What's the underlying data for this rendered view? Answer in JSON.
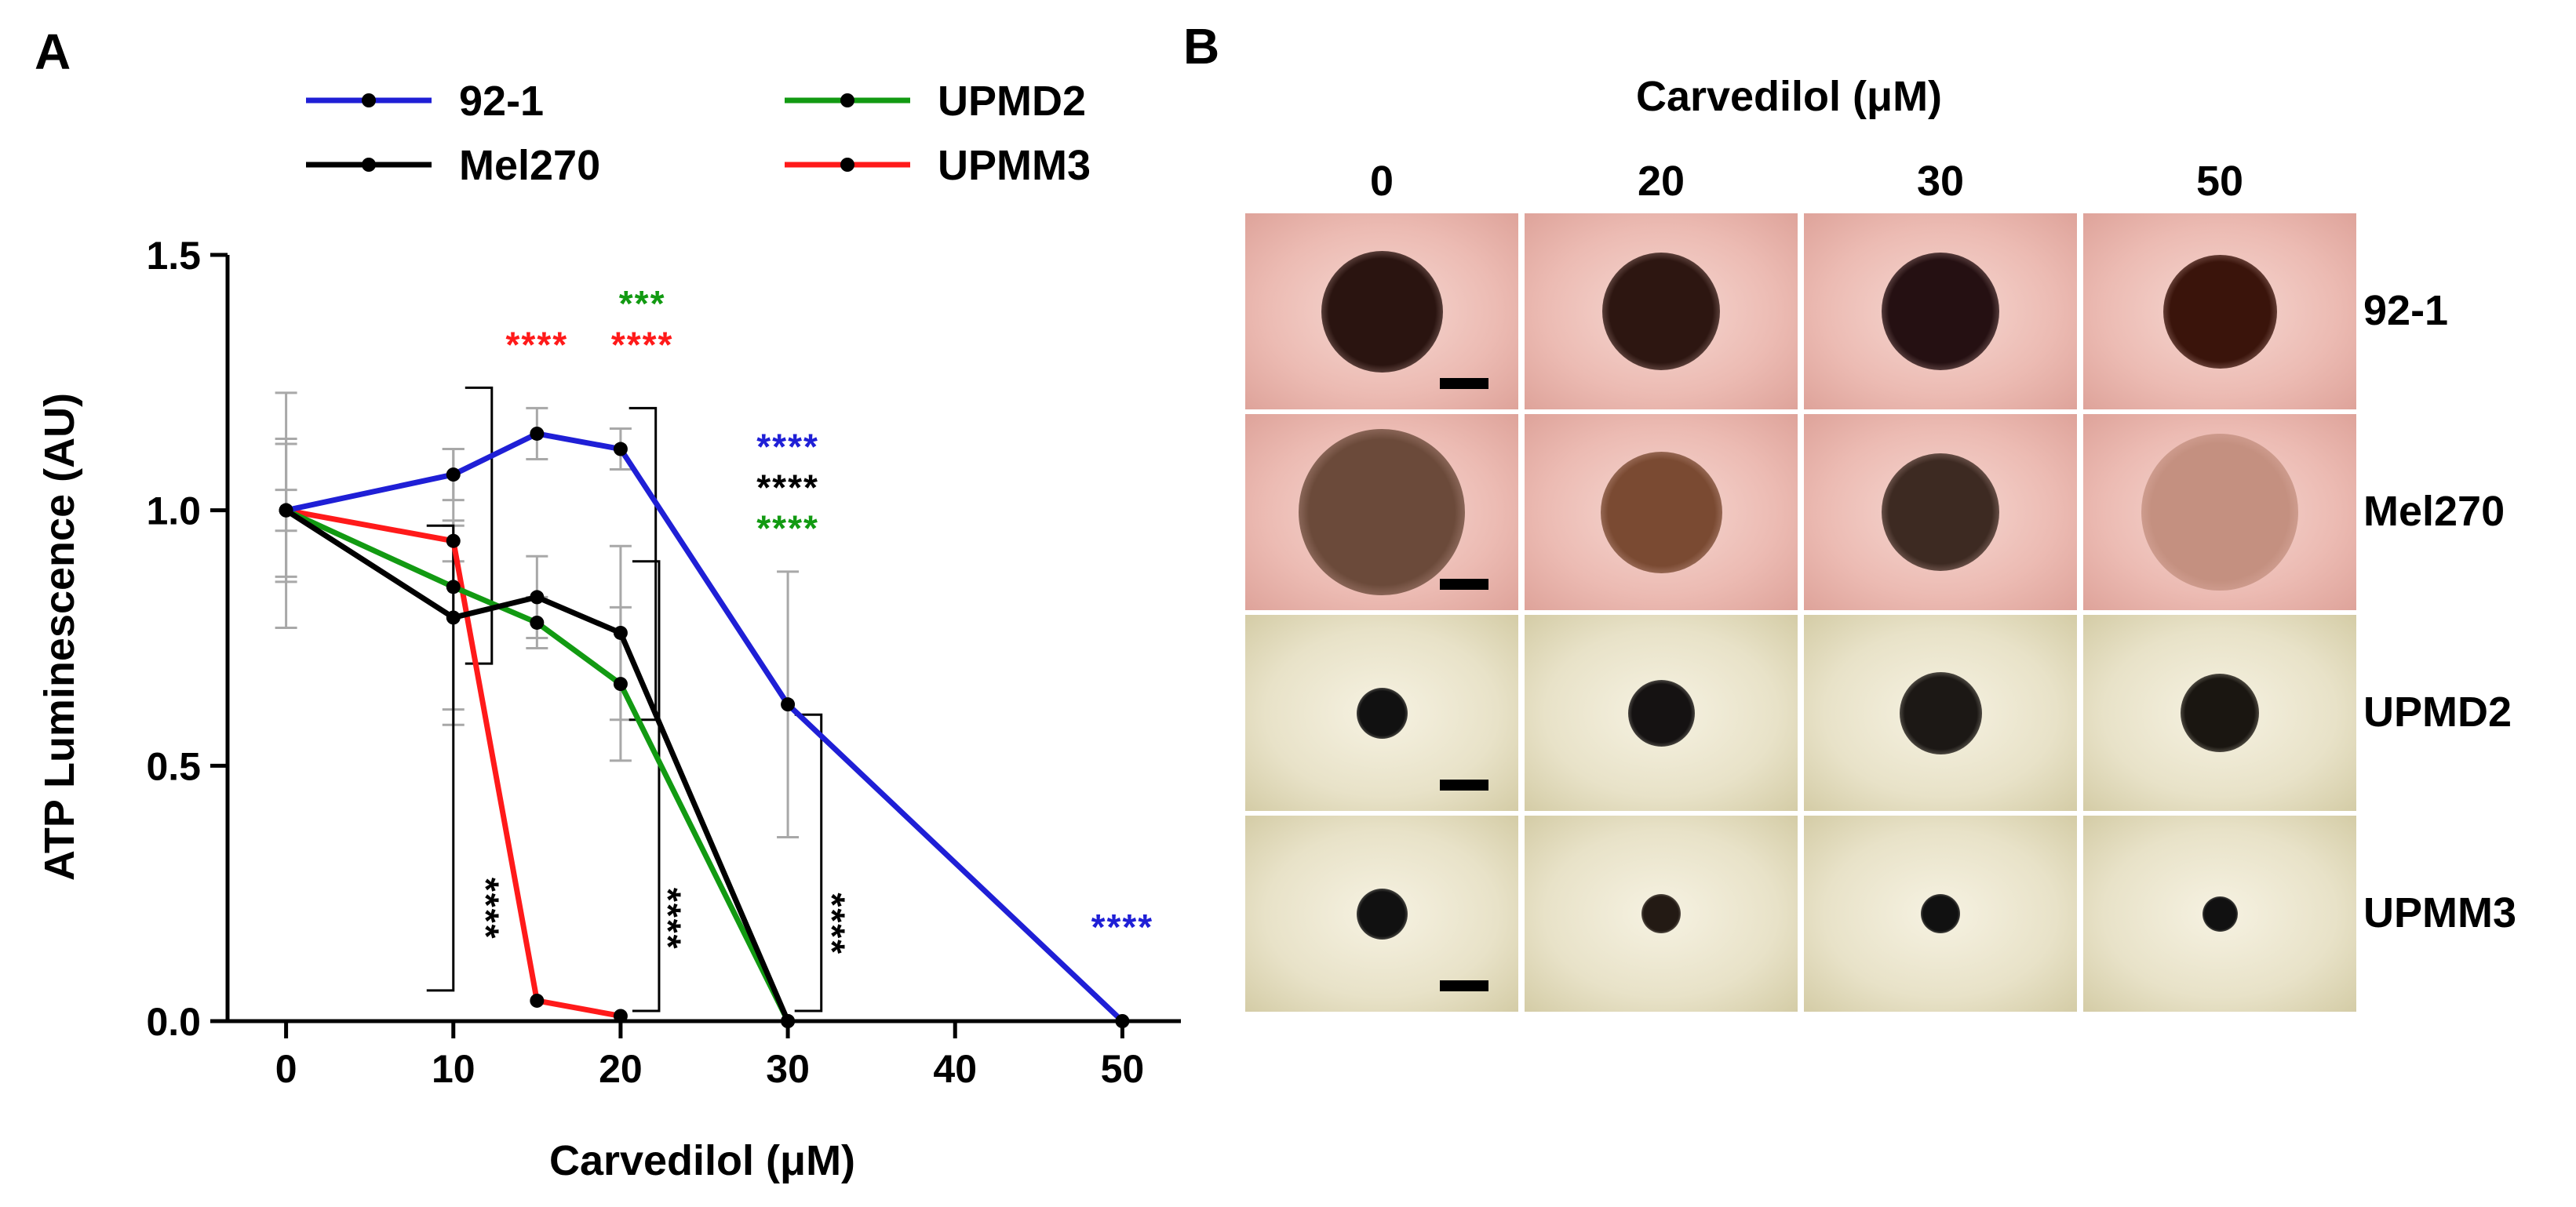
{
  "panel_a_label": "A",
  "panel_b_label": "B",
  "chart_data": {
    "type": "line",
    "xlabel": "Carvedilol (μM)",
    "ylabel": "ATP Luminescence (AU)",
    "xlim": [
      -3.5,
      53.5
    ],
    "ylim": [
      0,
      1.5
    ],
    "xticks": [
      0,
      10,
      20,
      30,
      40,
      50
    ],
    "yticks": [
      "0.0",
      "0.5",
      "1.0",
      "1.5"
    ],
    "legend": "top",
    "series": [
      {
        "name": "92-1",
        "color": "#1f1fd6",
        "x": [
          0,
          10,
          15,
          20,
          30,
          50
        ],
        "y": [
          1.0,
          1.07,
          1.15,
          1.12,
          0.62,
          0.0
        ],
        "err": [
          0.13,
          0.05,
          0.05,
          0.04,
          0.26,
          0.0
        ]
      },
      {
        "name": "Mel270",
        "color": "#000000",
        "x": [
          0,
          10,
          15,
          20,
          30
        ],
        "y": [
          1.0,
          0.79,
          0.83,
          0.76,
          0.0
        ],
        "err": [
          0.23,
          0.18,
          0.08,
          0.17,
          0.0
        ]
      },
      {
        "name": "UPMD2",
        "color": "#129a12",
        "x": [
          0,
          10,
          15,
          20,
          30
        ],
        "y": [
          1.0,
          0.85,
          0.78,
          0.66,
          0.0
        ],
        "err": [
          0.14,
          0.27,
          0.05,
          0.15,
          0.0
        ]
      },
      {
        "name": "UPMM3",
        "color": "#ff1a1a",
        "x": [
          0,
          10,
          15,
          20
        ],
        "y": [
          1.0,
          0.94,
          0.04,
          0.01
        ],
        "err": [
          0.04,
          0.04,
          0.0,
          0.0
        ]
      }
    ],
    "annotations": [
      {
        "text": "****",
        "color": "#ff1a1a",
        "x": 15,
        "y": 1.3
      },
      {
        "text": "***",
        "color": "#129a12",
        "x": 21.3,
        "y": 1.38
      },
      {
        "text": "****",
        "color": "#ff1a1a",
        "x": 21.3,
        "y": 1.3
      },
      {
        "text": "****",
        "color": "#1f1fd6",
        "x": 30,
        "y": 1.1
      },
      {
        "text": "****",
        "color": "#000000",
        "x": 30,
        "y": 1.02
      },
      {
        "text": "****",
        "color": "#129a12",
        "x": 30,
        "y": 0.94
      },
      {
        "text": "****",
        "color": "#1f1fd6",
        "x": 50,
        "y": 0.16
      },
      {
        "text": "****",
        "color": "#000000",
        "x": 11.2,
        "y": 0.22,
        "rotate": 90
      },
      {
        "text": "****",
        "color": "#000000",
        "x": 22.1,
        "y": 0.2,
        "rotate": 90
      },
      {
        "text": "****",
        "color": "#000000",
        "x": 31.9,
        "y": 0.19,
        "rotate": 90
      }
    ],
    "brackets": [
      {
        "x": 12.3,
        "y1": 0.7,
        "y2": 1.24
      },
      {
        "x": 22.1,
        "y1": 0.59,
        "y2": 1.2
      },
      {
        "x": 10,
        "y1": 0.06,
        "y2": 0.97
      },
      {
        "x": 22.3,
        "y1": 0.02,
        "y2": 0.9
      },
      {
        "x": 32,
        "y1": 0.02,
        "y2": 0.6
      }
    ]
  },
  "panel_b": {
    "title": "Carvedilol (μM)",
    "columns": [
      "0",
      "20",
      "30",
      "50"
    ],
    "rows": [
      {
        "label": "92-1",
        "background": "pink",
        "spheroids": [
          {
            "size": 0.62,
            "color": "#2a1410"
          },
          {
            "size": 0.6,
            "color": "#2d1611"
          },
          {
            "size": 0.6,
            "color": "#251012"
          },
          {
            "size": 0.58,
            "color": "#3a140b"
          }
        ]
      },
      {
        "label": "Mel270",
        "background": "pink",
        "spheroids": [
          {
            "size": 0.85,
            "color": "#6b4a3a"
          },
          {
            "size": 0.62,
            "color": "#7a4a32"
          },
          {
            "size": 0.6,
            "color": "#3d2a22"
          },
          {
            "size": 0.8,
            "color": "#c49080"
          }
        ]
      },
      {
        "label": "UPMD2",
        "background": "cream",
        "spheroids": [
          {
            "size": 0.26,
            "color": "#111111"
          },
          {
            "size": 0.34,
            "color": "#151212"
          },
          {
            "size": 0.42,
            "color": "#1c1815"
          },
          {
            "size": 0.4,
            "color": "#1a1611"
          }
        ]
      },
      {
        "label": "UPMM3",
        "background": "cream",
        "spheroids": [
          {
            "size": 0.26,
            "color": "#111111"
          },
          {
            "size": 0.2,
            "color": "#231a14"
          },
          {
            "size": 0.2,
            "color": "#111111"
          },
          {
            "size": 0.18,
            "color": "#111111"
          }
        ]
      }
    ]
  }
}
